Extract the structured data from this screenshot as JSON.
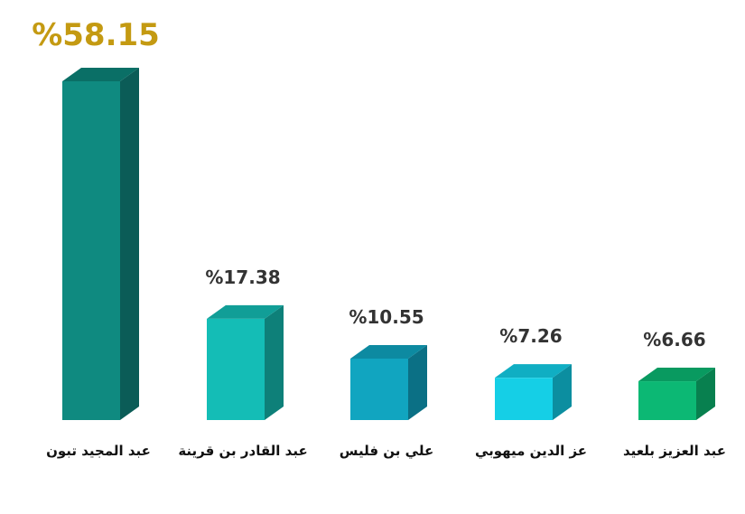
{
  "chart_data": {
    "type": "bar",
    "categories": [
      "عبد المجيد تبون",
      "عبد القادر بن قرينة",
      "علي بن فليس",
      "عز الدين ميهوبي",
      "عبد العزيز بلعيد"
    ],
    "values": [
      58.15,
      17.38,
      10.55,
      7.26,
      6.66
    ],
    "value_labels": [
      "%58.15",
      "%17.38",
      "%10.55",
      "%7.26",
      "%6.66"
    ],
    "highlight_color": "#c49a12",
    "label_color": "#333333",
    "bar_colors": [
      {
        "front": "#0f8a80",
        "side": "#0b5c57",
        "top": "#0a6f66"
      },
      {
        "front": "#14bdb6",
        "side": "#0e8079",
        "top": "#119e97"
      },
      {
        "front": "#11a5c0",
        "side": "#0b7085",
        "top": "#0d8aa1"
      },
      {
        "front": "#15cfe6",
        "side": "#0c8ea0",
        "top": "#10aec3"
      },
      {
        "front": "#0cb874",
        "side": "#08804f",
        "top": "#099a60"
      }
    ],
    "ylim": [
      0,
      58.15
    ]
  }
}
